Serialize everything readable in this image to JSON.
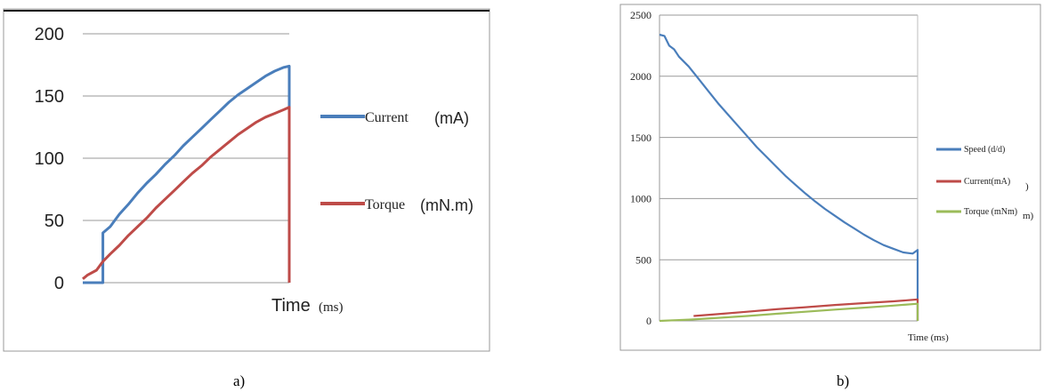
{
  "panels": {
    "a": {
      "caption": "a)",
      "chart_data": {
        "type": "line",
        "title": "",
        "xlabel": "Time",
        "xlabel_unit": "(ms)",
        "ylabel": "",
        "ylim": [
          0,
          200
        ],
        "yticks": [
          "0",
          "50",
          "100",
          "150",
          "200"
        ],
        "grid": true,
        "legend_position": "right",
        "series": [
          {
            "name": "Current",
            "name_unit": "(mA)",
            "color": "#4a7ebb",
            "points": [
              [
                0,
                0
              ],
              [
                22,
                0
              ],
              [
                22,
                40
              ],
              [
                30,
                45
              ],
              [
                40,
                55
              ],
              [
                50,
                63
              ],
              [
                60,
                72
              ],
              [
                70,
                80
              ],
              [
                80,
                87
              ],
              [
                90,
                95
              ],
              [
                100,
                102
              ],
              [
                110,
                110
              ],
              [
                120,
                117
              ],
              [
                130,
                124
              ],
              [
                140,
                131
              ],
              [
                150,
                138
              ],
              [
                160,
                145
              ],
              [
                170,
                151
              ],
              [
                180,
                156
              ],
              [
                190,
                161
              ],
              [
                200,
                166
              ],
              [
                210,
                170
              ],
              [
                220,
                173
              ],
              [
                226,
                174
              ],
              [
                226,
                0
              ]
            ]
          },
          {
            "name": "Torque",
            "name_unit": "(mN.m)",
            "color": "#be4b48",
            "points": [
              [
                0,
                3
              ],
              [
                5,
                6
              ],
              [
                15,
                10
              ],
              [
                22,
                17
              ],
              [
                30,
                23
              ],
              [
                40,
                30
              ],
              [
                50,
                38
              ],
              [
                60,
                45
              ],
              [
                70,
                52
              ],
              [
                80,
                60
              ],
              [
                90,
                67
              ],
              [
                100,
                74
              ],
              [
                110,
                81
              ],
              [
                120,
                88
              ],
              [
                130,
                94
              ],
              [
                140,
                101
              ],
              [
                150,
                107
              ],
              [
                160,
                113
              ],
              [
                170,
                119
              ],
              [
                180,
                124
              ],
              [
                190,
                129
              ],
              [
                200,
                133
              ],
              [
                210,
                136
              ],
              [
                220,
                139
              ],
              [
                226,
                141
              ],
              [
                226,
                0
              ]
            ]
          }
        ]
      }
    },
    "b": {
      "caption": "b)",
      "chart_data": {
        "type": "line",
        "title": "",
        "xlabel": "Time (ms)",
        "ylabel": "",
        "ylim": [
          0,
          2500
        ],
        "yticks": [
          "0",
          "500",
          "1000",
          "1500",
          "2000",
          "2500"
        ],
        "grid": true,
        "legend_position": "right",
        "series": [
          {
            "name": "Speed (d/d)",
            "color": "#4a7ebb",
            "points": [
              [
                0,
                2340
              ],
              [
                5,
                2330
              ],
              [
                10,
                2250
              ],
              [
                15,
                2220
              ],
              [
                20,
                2160
              ],
              [
                30,
                2080
              ],
              [
                40,
                1980
              ],
              [
                50,
                1880
              ],
              [
                60,
                1780
              ],
              [
                70,
                1690
              ],
              [
                80,
                1600
              ],
              [
                90,
                1510
              ],
              [
                100,
                1420
              ],
              [
                110,
                1340
              ],
              [
                120,
                1260
              ],
              [
                130,
                1180
              ],
              [
                140,
                1110
              ],
              [
                150,
                1040
              ],
              [
                160,
                975
              ],
              [
                170,
                915
              ],
              [
                180,
                860
              ],
              [
                190,
                805
              ],
              [
                200,
                755
              ],
              [
                210,
                705
              ],
              [
                220,
                660
              ],
              [
                230,
                620
              ],
              [
                240,
                590
              ],
              [
                250,
                560
              ],
              [
                260,
                550
              ],
              [
                265,
                580
              ],
              [
                265,
                0
              ]
            ]
          },
          {
            "name": "Current(mA)",
            "color": "#be4b48",
            "points": [
              [
                35,
                40
              ],
              [
                60,
                55
              ],
              [
                90,
                75
              ],
              [
                120,
                95
              ],
              [
                150,
                112
              ],
              [
                180,
                130
              ],
              [
                210,
                145
              ],
              [
                240,
                160
              ],
              [
                265,
                175
              ],
              [
                265,
                0
              ]
            ]
          },
          {
            "name": "Torque (mNm)",
            "color": "#9bbb59",
            "points": [
              [
                0,
                0
              ],
              [
                30,
                10
              ],
              [
                60,
                25
              ],
              [
                90,
                40
              ],
              [
                120,
                58
              ],
              [
                150,
                75
              ],
              [
                180,
                92
              ],
              [
                210,
                108
              ],
              [
                240,
                125
              ],
              [
                265,
                140
              ],
              [
                265,
                0
              ]
            ]
          }
        ],
        "legend_stray_marks": [
          ")",
          "m)"
        ]
      }
    }
  }
}
